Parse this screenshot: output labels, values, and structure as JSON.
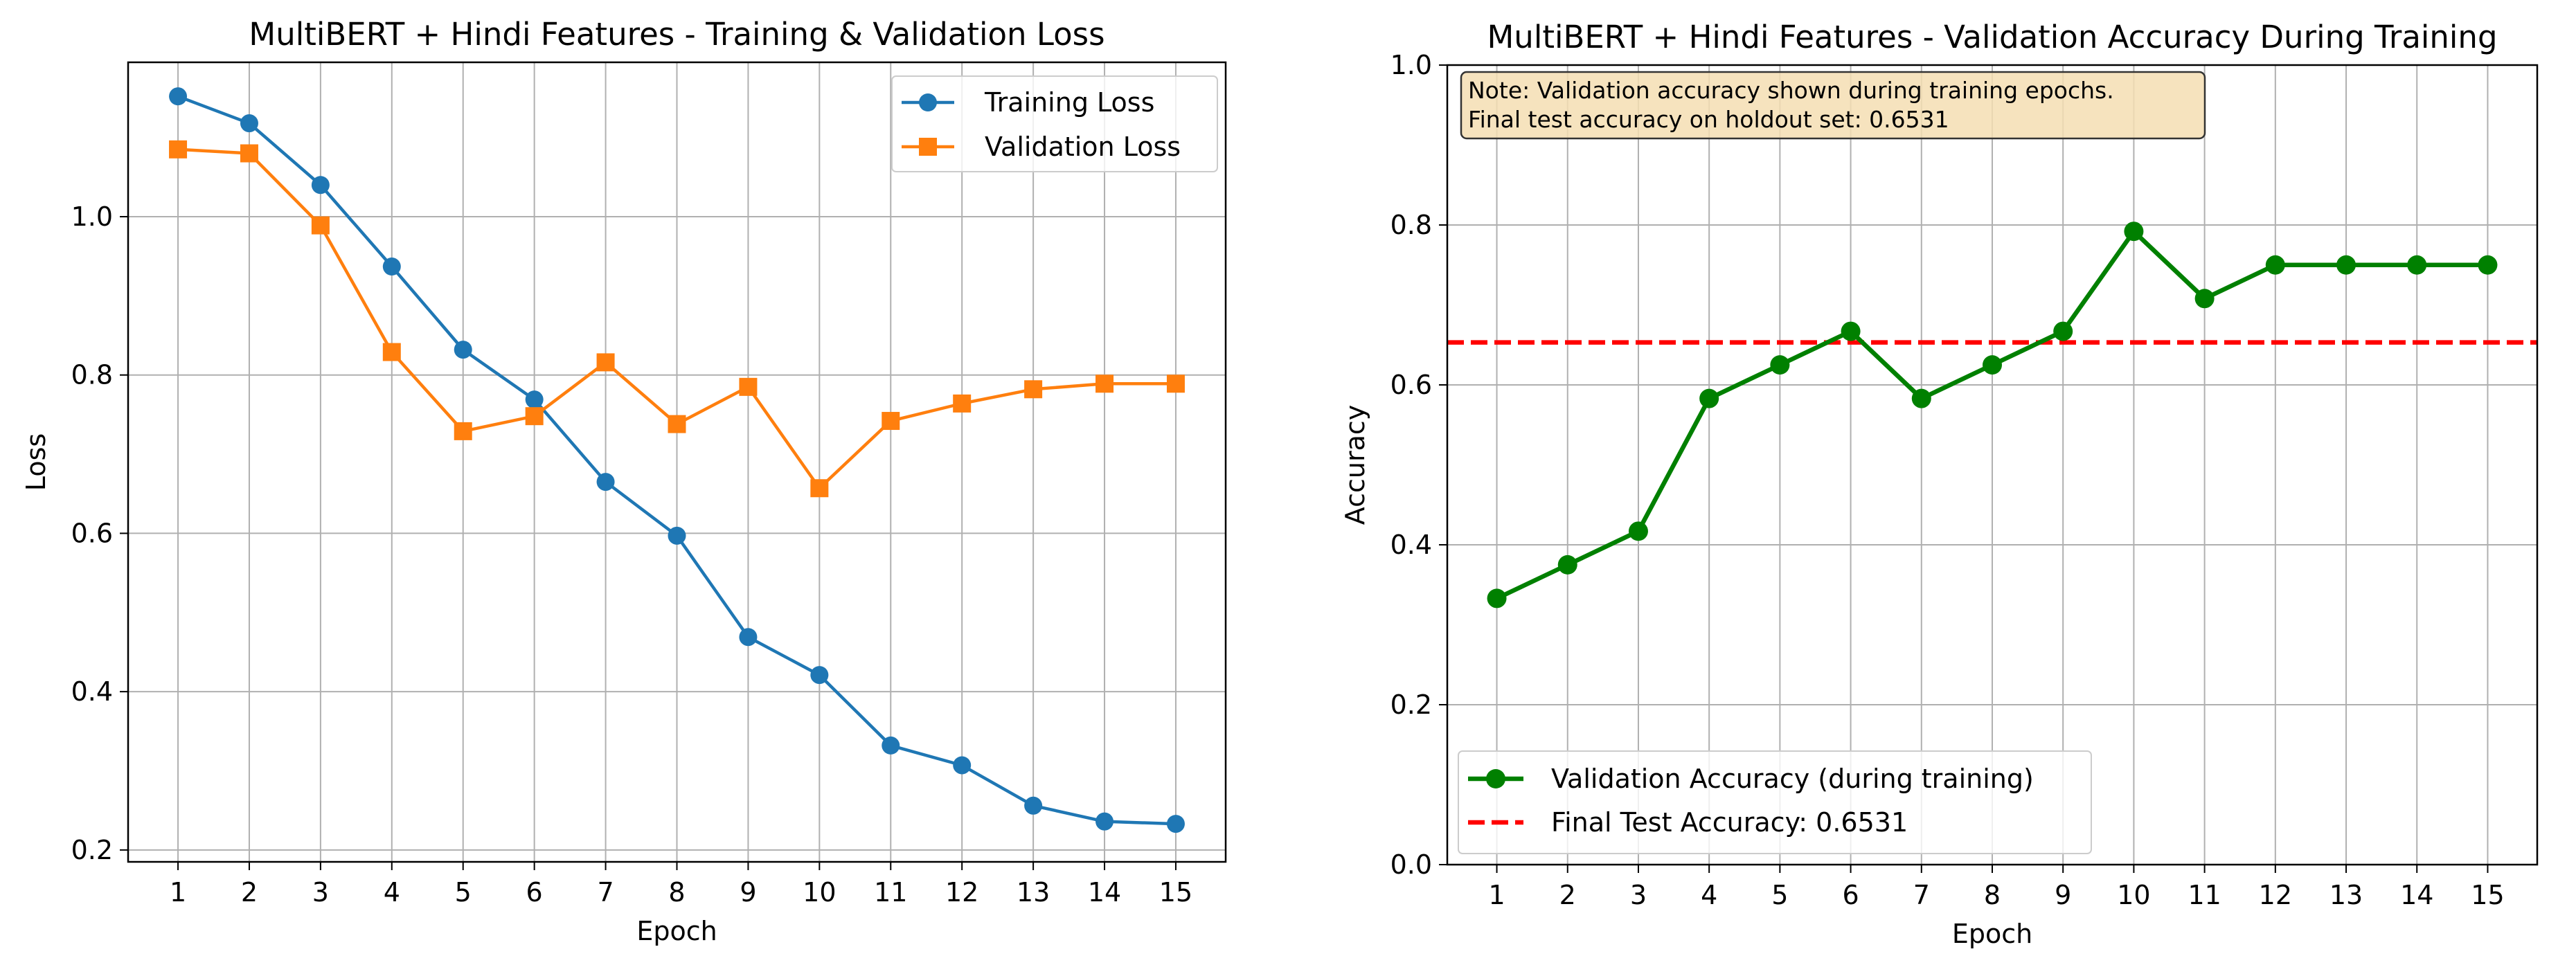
{
  "chart_data": [
    {
      "type": "line",
      "title": "MultiBERT + Hindi Features - Training & Validation Loss",
      "xlabel": "Epoch",
      "ylabel": "Loss",
      "x": [
        1,
        2,
        3,
        4,
        5,
        6,
        7,
        8,
        9,
        10,
        11,
        12,
        13,
        14,
        15
      ],
      "xlim": [
        0.3,
        15.7
      ],
      "ylim": [
        0.185,
        1.195
      ],
      "yticks": [
        "0.2",
        "0.4",
        "0.6",
        "0.8",
        "1.0"
      ],
      "grid": true,
      "legend_position": "top-right",
      "series": [
        {
          "name": "Training Loss",
          "color": "#1f77b4",
          "marker": "circle",
          "values": [
            1.152,
            1.118,
            1.04,
            0.937,
            0.832,
            0.769,
            0.665,
            0.597,
            0.469,
            0.421,
            0.332,
            0.307,
            0.256,
            0.236,
            0.233
          ]
        },
        {
          "name": "Validation Loss",
          "color": "#ff7f0e",
          "marker": "square",
          "values": [
            1.085,
            1.08,
            0.989,
            0.829,
            0.729,
            0.748,
            0.816,
            0.738,
            0.785,
            0.657,
            0.742,
            0.764,
            0.782,
            0.789,
            0.789
          ]
        }
      ]
    },
    {
      "type": "line",
      "title": "MultiBERT + Hindi Features - Validation Accuracy During Training",
      "xlabel": "Epoch",
      "ylabel": "Accuracy",
      "x": [
        1,
        2,
        3,
        4,
        5,
        6,
        7,
        8,
        9,
        10,
        11,
        12,
        13,
        14,
        15
      ],
      "xlim": [
        0.3,
        15.7
      ],
      "ylim": [
        0.0,
        1.0
      ],
      "yticks": [
        "0.0",
        "0.2",
        "0.4",
        "0.6",
        "0.8",
        "1.0"
      ],
      "grid": true,
      "legend_position": "bottom-left",
      "series": [
        {
          "name": "Validation Accuracy (during training)",
          "color": "#008000",
          "marker": "circle",
          "values": [
            0.333,
            0.375,
            0.417,
            0.583,
            0.625,
            0.667,
            0.583,
            0.625,
            0.667,
            0.792,
            0.708,
            0.75,
            0.75,
            0.75,
            0.75
          ]
        }
      ],
      "reference_line": {
        "name": "Final Test Accuracy: 0.6531",
        "value": 0.6531,
        "color": "#ff0000",
        "style": "dashed"
      },
      "annotation": {
        "line1": "Note: Validation accuracy shown during training epochs.",
        "line2": "Final test accuracy on holdout set: 0.6531"
      }
    }
  ]
}
